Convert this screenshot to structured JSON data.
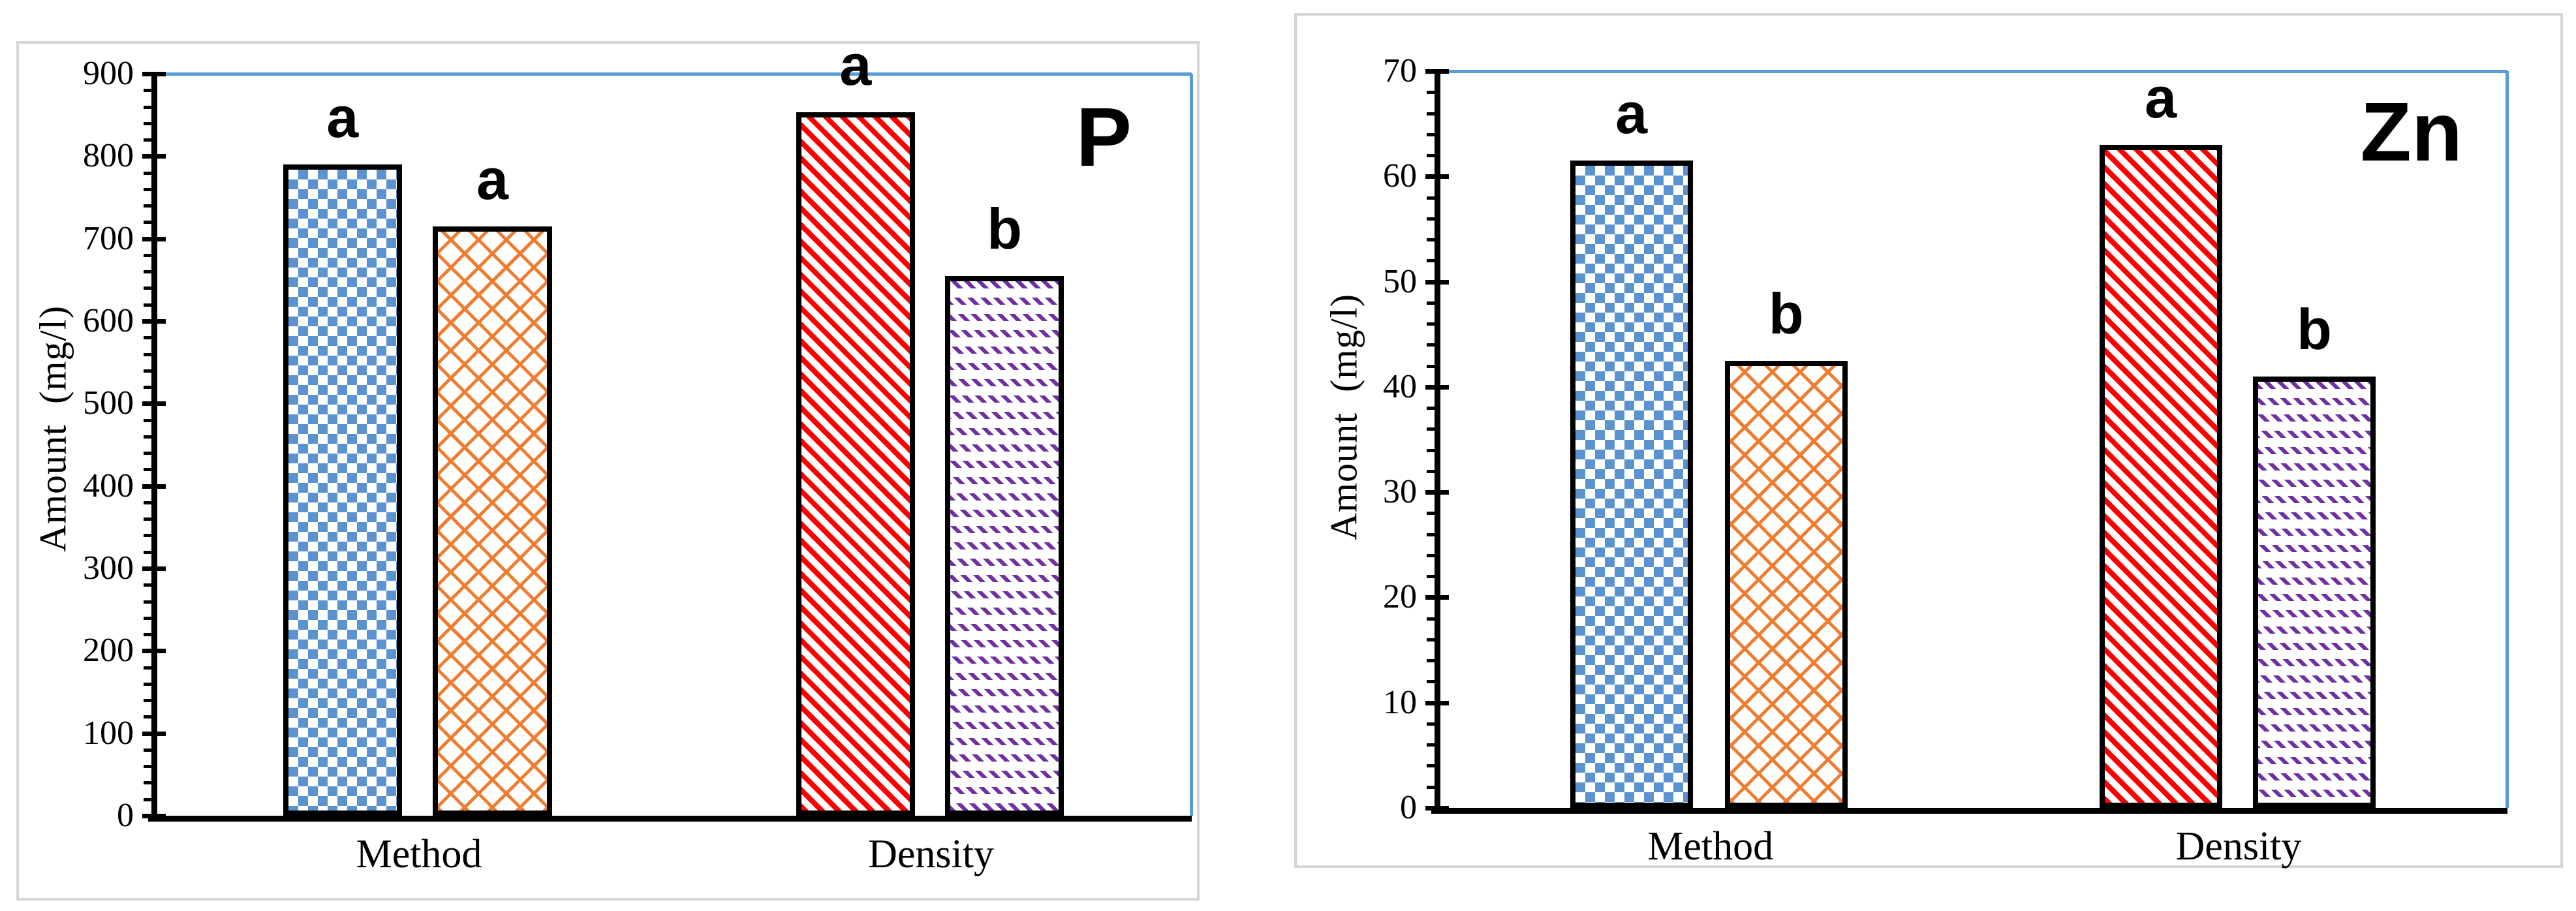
{
  "figure": {
    "background": "#ffffff",
    "panel_border_color": "#D6D6D6",
    "plot_border_color": "#5B9BD5",
    "axis_color": "#000000",
    "significance_note_letters": [
      "a",
      "b"
    ]
  },
  "chart_data": [
    {
      "type": "bar",
      "title": "P",
      "ylabel": "Amount  (mg/l)",
      "xlabel": "",
      "ylim": [
        0,
        900
      ],
      "ytick_major": 100,
      "ytick_minor": 20,
      "grid": false,
      "legend": "none",
      "categories": [
        "Method",
        "Density"
      ],
      "groups": [
        {
          "category": "Method",
          "bars": [
            {
              "value": 790,
              "letter": "a",
              "pattern": "blue-checker",
              "pattern_color": "#5B93D1"
            },
            {
              "value": 715,
              "letter": "a",
              "pattern": "orange-crosshatch",
              "pattern_color": "#ED7D31"
            }
          ]
        },
        {
          "category": "Density",
          "bars": [
            {
              "value": 853,
              "letter": "a",
              "pattern": "red-diagonal-stripe",
              "pattern_color": "#FE0000"
            },
            {
              "value": 655,
              "letter": "b",
              "pattern": "purple-dash-rows",
              "pattern_color": "#7030A0"
            }
          ]
        }
      ]
    },
    {
      "type": "bar",
      "title": "Zn",
      "ylabel": "Amount  (mg/l)",
      "xlabel": "",
      "ylim": [
        0,
        70
      ],
      "ytick_major": 10,
      "ytick_minor": 2,
      "grid": false,
      "legend": "none",
      "categories": [
        "Method",
        "Density"
      ],
      "groups": [
        {
          "category": "Method",
          "bars": [
            {
              "value": 61.5,
              "letter": "a",
              "pattern": "blue-checker",
              "pattern_color": "#5B93D1"
            },
            {
              "value": 42.5,
              "letter": "b",
              "pattern": "orange-crosshatch",
              "pattern_color": "#ED7D31"
            }
          ]
        },
        {
          "category": "Density",
          "bars": [
            {
              "value": 63,
              "letter": "a",
              "pattern": "red-diagonal-stripe",
              "pattern_color": "#FE0000"
            },
            {
              "value": 41,
              "letter": "b",
              "pattern": "purple-dash-rows",
              "pattern_color": "#7030A0"
            }
          ]
        }
      ]
    }
  ]
}
